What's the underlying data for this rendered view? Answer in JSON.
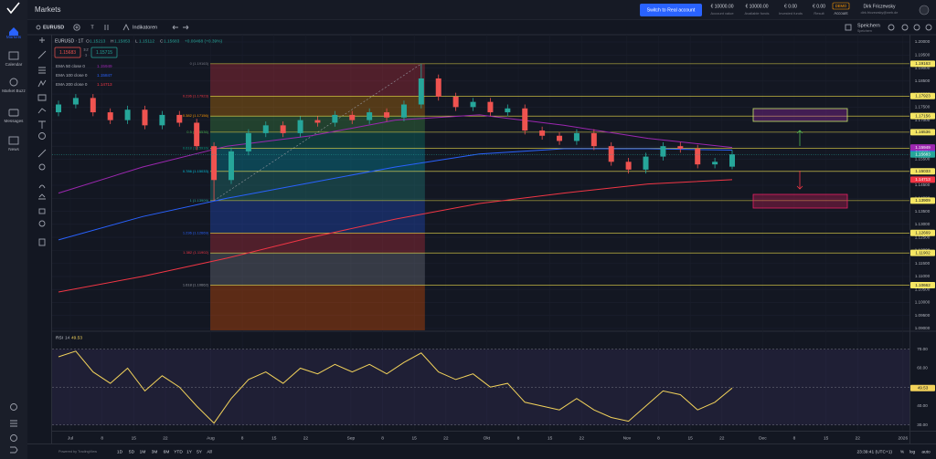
{
  "sidebar": {
    "items": [
      "Markets",
      "Calendar",
      "Market Buzz",
      "Messages",
      "News"
    ]
  },
  "header": {
    "title": "Markets",
    "button": "Switch to Real account",
    "stats": [
      {
        "value": "€ 10000.00",
        "label": "Account value"
      },
      {
        "value": "€ 10000.00",
        "label": "Available funds"
      },
      {
        "value": "€ 0.00",
        "label": "Invested funds"
      },
      {
        "value": "€ 0.00",
        "label": "Result"
      }
    ],
    "badge": "DEMO",
    "badge_label": "Account",
    "user": {
      "name": "Dirk Friczewsky",
      "email": "dirk.friczewsky@web.de"
    }
  },
  "toolbar": {
    "symbol": "EURUSD",
    "interval": "T",
    "indicators": "Indikatoren",
    "save": "Speichern",
    "save_sub": "Speichern"
  },
  "chart": {
    "type": "candlestick",
    "title": "EURUSD · 1T",
    "legend": [
      {
        "key": "O",
        "path": "open"
      },
      {
        "key": "H",
        "path": "high"
      },
      {
        "key": "L",
        "path": "low"
      },
      {
        "key": "C",
        "path": "close"
      }
    ],
    "change": "+0.00468 (+0.39%)",
    "spread": "3.2",
    "spread_unit": "1",
    "ask": "1.15715",
    "up_color": "#26a69a",
    "down_color": "#ef5350",
    "grid": true,
    "ylim": [
      1.0893,
      1.2028
    ],
    "yticks": [
      {
        "value": 1.09,
        "label": "1.09000"
      },
      {
        "value": 1.095,
        "label": "1.09500"
      },
      {
        "value": 1.1,
        "label": "1.10000"
      },
      {
        "value": 1.105,
        "label": "1.10500"
      },
      {
        "value": 1.11,
        "label": "1.11000"
      },
      {
        "value": 1.115,
        "label": "1.11500"
      },
      {
        "value": 1.12,
        "label": "1.12000"
      },
      {
        "value": 1.125,
        "label": "1.12500"
      },
      {
        "value": 1.13,
        "label": "1.13000"
      },
      {
        "value": 1.135,
        "label": "1.13500"
      },
      {
        "value": 1.14,
        "label": "1.14000"
      },
      {
        "value": 1.145,
        "label": "1.14500"
      },
      {
        "value": 1.15,
        "label": "1.15000"
      },
      {
        "value": 1.155,
        "label": "1.15500"
      },
      {
        "value": 1.16,
        "label": "1.16000"
      },
      {
        "value": 1.165,
        "label": "1.16500"
      },
      {
        "value": 1.17,
        "label": "1.17000"
      },
      {
        "value": 1.175,
        "label": "1.17500"
      },
      {
        "value": 1.18,
        "label": "1.18000"
      },
      {
        "value": 1.185,
        "label": "1.18500"
      },
      {
        "value": 1.19,
        "label": "1.19000"
      },
      {
        "value": 1.195,
        "label": "1.19500"
      },
      {
        "value": 1.2,
        "label": "1.20000"
      }
    ],
    "open": [
      1.173,
      1.176,
      1.1785,
      1.173,
      1.17,
      1.174,
      1.168,
      1.172,
      1.169,
      1.16,
      1.147,
      1.158,
      1.165,
      1.168,
      1.165,
      1.17,
      1.169,
      1.172,
      1.17,
      1.173,
      1.171,
      1.176,
      1.186,
      1.179,
      1.175,
      1.177,
      1.173,
      1.1745,
      1.166,
      1.164,
      1.162,
      1.165,
      1.16,
      1.154,
      1.151,
      1.156,
      1.16,
      1.159,
      1.153,
      1.15213
    ],
    "high": [
      1.1775,
      1.18,
      1.18,
      1.1745,
      1.1755,
      1.1755,
      1.1735,
      1.1735,
      1.1705,
      1.1615,
      1.1595,
      1.1665,
      1.1695,
      1.1695,
      1.1715,
      1.1715,
      1.1735,
      1.1735,
      1.1745,
      1.1745,
      1.1775,
      1.1916,
      1.1875,
      1.1805,
      1.1785,
      1.1785,
      1.176,
      1.176,
      1.1675,
      1.1655,
      1.1665,
      1.1665,
      1.1615,
      1.1555,
      1.1575,
      1.1615,
      1.1615,
      1.1605,
      1.1555,
      1.15853
    ],
    "low": [
      1.1715,
      1.1745,
      1.1715,
      1.1685,
      1.1685,
      1.1665,
      1.1665,
      1.1675,
      1.1585,
      1.1391,
      1.1455,
      1.1565,
      1.1635,
      1.1635,
      1.1635,
      1.1675,
      1.1675,
      1.1685,
      1.1685,
      1.1695,
      1.1695,
      1.1745,
      1.1775,
      1.1735,
      1.1735,
      1.1715,
      1.1715,
      1.1645,
      1.1625,
      1.1605,
      1.1605,
      1.1585,
      1.1525,
      1.1495,
      1.1495,
      1.1545,
      1.1575,
      1.1515,
      1.1515,
      1.15112
    ],
    "close": [
      1.176,
      1.1785,
      1.173,
      1.17,
      1.174,
      1.168,
      1.172,
      1.169,
      1.16,
      1.147,
      1.158,
      1.165,
      1.168,
      1.165,
      1.17,
      1.169,
      1.172,
      1.17,
      1.173,
      1.171,
      1.176,
      1.186,
      1.179,
      1.175,
      1.177,
      1.173,
      1.1745,
      1.166,
      1.164,
      1.162,
      1.165,
      1.16,
      1.154,
      1.151,
      1.156,
      1.16,
      1.159,
      1.153,
      1.154,
      1.15683
    ],
    "price_color": "#26a69a",
    "ema": [
      {
        "name": "EMA 200 close 0",
        "color": "#f23645",
        "values": [
          1.104,
          1.11,
          1.117,
          1.125,
          1.132,
          1.138,
          1.142,
          1.1455,
          1.14713
        ]
      },
      {
        "name": "EMA 100 close 0",
        "color": "#2962ff",
        "values": [
          1.124,
          1.133,
          1.14,
          1.146,
          1.152,
          1.157,
          1.159,
          1.159,
          1.15847
        ]
      },
      {
        "name": "EMA 50 close 0",
        "color": "#9c27b0",
        "values": [
          1.142,
          1.152,
          1.16,
          1.164,
          1.17,
          1.172,
          1.168,
          1.163,
          1.15949
        ]
      }
    ],
    "fib": {
      "line_color": "#e8d94a",
      "tag_color": "#f5e663",
      "levels": [
        {
          "label": "0 (1.19163)",
          "value": 1.19163,
          "color": "#787b86"
        },
        {
          "label": "0.236 (1.17923)",
          "value": 1.17923,
          "color": "#f23645"
        },
        {
          "label": "0.382 (1.17156)",
          "value": 1.17156,
          "color": "#ff9800"
        },
        {
          "label": "0.5 (1.16536)",
          "value": 1.16536,
          "color": "#4caf50"
        },
        {
          "label": "0.618 (1.15916)",
          "value": 1.15916,
          "color": "#089981"
        },
        {
          "label": "0.786 (1.15033)",
          "value": 1.15033,
          "color": "#00bcd4"
        },
        {
          "label": "1 (1.13909)",
          "value": 1.13909,
          "color": "#26a69a"
        },
        {
          "label": "1.236 (1.12669)",
          "value": 1.12669,
          "color": "#2962ff"
        },
        {
          "label": "1.382 (1.11902)",
          "value": 1.11902,
          "color": "#f23645"
        },
        {
          "label": "1.618 (1.10662)",
          "value": 1.10662,
          "color": "#9598a1"
        }
      ]
    },
    "x_labels": [
      "Jul",
      "8",
      "15",
      "22",
      "Aug",
      "8",
      "15",
      "22",
      "Sep",
      "8",
      "15",
      "22",
      "Okt",
      "8",
      "15",
      "22",
      "Nov",
      "8",
      "15",
      "22",
      "Dec",
      "8",
      "15",
      "22",
      "2026"
    ]
  },
  "rsi": {
    "type": "line",
    "title": "RSI",
    "period": "14",
    "color": "#f3d35b",
    "values": [
      66,
      69,
      58,
      52,
      60,
      48,
      56,
      50,
      40,
      31,
      44,
      54,
      58,
      52,
      60,
      57,
      62,
      58,
      62,
      57,
      63,
      68,
      58,
      54,
      57,
      50,
      52,
      42,
      40,
      38,
      44,
      38,
      34,
      32,
      40,
      48,
      46,
      38,
      42,
      49.53
    ],
    "ylim": [
      27,
      79
    ],
    "yticks": [
      {
        "value": 70,
        "label": "70.00"
      },
      {
        "value": 60,
        "label": "60.00"
      },
      {
        "value": 50,
        "label": "50.00"
      },
      {
        "value": 40,
        "label": "40.00"
      },
      {
        "value": 30,
        "label": "30.00"
      }
    ]
  },
  "footer": {
    "powered": "Powered by TradingView",
    "ranges": [
      "1D",
      "5D",
      "1M",
      "3M",
      "6M",
      "YTD",
      "1Y",
      "5Y",
      "All"
    ],
    "time": "23:39:41 (UTC+1)",
    "options": [
      "%",
      "log",
      "auto"
    ]
  }
}
